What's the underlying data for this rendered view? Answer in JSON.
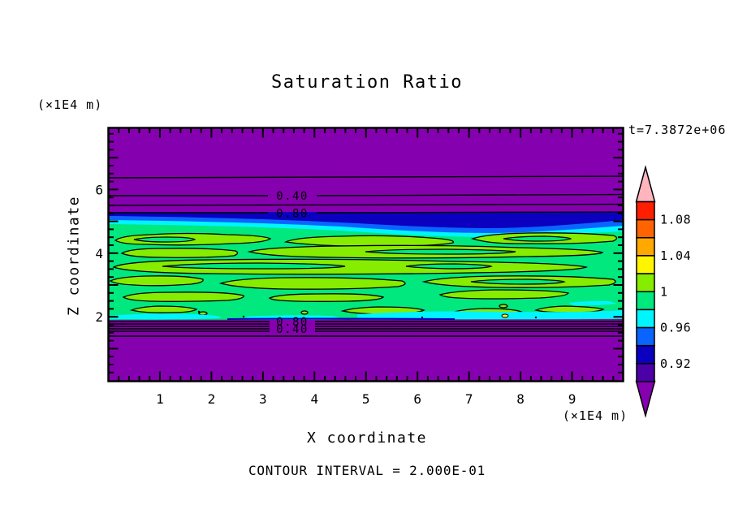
{
  "title": "Saturation Ratio",
  "time_annotation": "t=7.3872e+06",
  "y_axis_unit": "(×1E4 m)",
  "x_axis_unit": "(×1E4 m)",
  "x_axis_label": "X coordinate",
  "y_axis_label": "Z coordinate",
  "footer": "CONTOUR INTERVAL = 2.000E-01",
  "annotations": {
    "upper_040": "0.40",
    "upper_080": "0.80",
    "lower_080": "0.80",
    "lower_040": "0.40"
  },
  "colors": {
    "background": "#FFFFFF",
    "line": "#000000",
    "purple": "#8500AE",
    "indigo": "#4B00A8",
    "navy": "#0B00C0",
    "blue": "#0A64FF",
    "cyan": "#00F5FF",
    "spring_green": "#00E87E",
    "chartreuse": "#86EC00",
    "yellow": "#FFF500",
    "orange": "#FFA800",
    "orange_red": "#FF6400",
    "red": "#FF1E00",
    "pink": "#FFB4BE"
  },
  "chart_data": {
    "type": "heatmap",
    "title": "Saturation Ratio",
    "xlabel": "X coordinate",
    "ylabel": "Z coordinate",
    "x_unit": "(×1E4 m)",
    "y_unit": "(×1E4 m)",
    "xlim": [
      0,
      10
    ],
    "ylim": [
      0,
      8
    ],
    "x_major_ticks": [
      1,
      2,
      3,
      4,
      5,
      6,
      7,
      8,
      9
    ],
    "y_major_ticks": [
      2,
      4,
      6
    ],
    "x_minor_step": 0.2,
    "y_minor_step": 0.25,
    "time_annotation": "t=7.3872e+06",
    "contour_interval": 0.2,
    "contour_interval_label": "CONTOUR INTERVAL = 2.000E-01",
    "labeled_contours": [
      0.4,
      0.8
    ],
    "field_summary": {
      "saturated_band": "Saturation ratio ≈ 0.96–1.02 in a horizontal band between z ≈ 2 and z ≈ 5.2 (×1E4 m): spring-green background (0.98–1.00) with elongated yellow-green patches (1.00–1.02), thin cyan streaks (0.96–0.98) near band edges, and a navy/blue/cyan transition (0.90–0.98) along the band top, thicker toward x ≈ 5–8",
      "upper_region": "Under-saturated purple region (< 0.90) above z ≈ 5.3 with horizontal contour lines 0.20, 0.40, 0.60, 0.80 between z ≈ 5.3 and 6.4",
      "lower_region": "Under-saturated purple region (< 0.90) below z ≈ 2 with a tight cluster of contour lines 0.80 → 0.20 at z ≈ 1.4–1.9",
      "tiny_features": "One tiny yellow speck (> 1.02) near x ≈ 7.7, z ≈ 2.0"
    },
    "colorbar": {
      "orientation": "vertical",
      "segment_colors": [
        "#FF1E00",
        "#FF6400",
        "#FFA800",
        "#FFF500",
        "#86EC00",
        "#00E87E",
        "#00F5FF",
        "#0A64FF",
        "#0B00C0",
        "#4B00A8"
      ],
      "segment_values": [
        "1.08–1.10",
        "1.06–1.08",
        "1.04–1.06",
        "1.02–1.04",
        "1.00–1.02",
        "0.98–1.00",
        "0.96–0.98",
        "0.94–0.96",
        "0.92–0.94",
        "0.90–0.92"
      ],
      "labels": [
        "1.08",
        "1.04",
        "1",
        "0.96",
        "0.92"
      ],
      "over_color": "#FFB4BE",
      "under_color": "#8500AE"
    }
  }
}
